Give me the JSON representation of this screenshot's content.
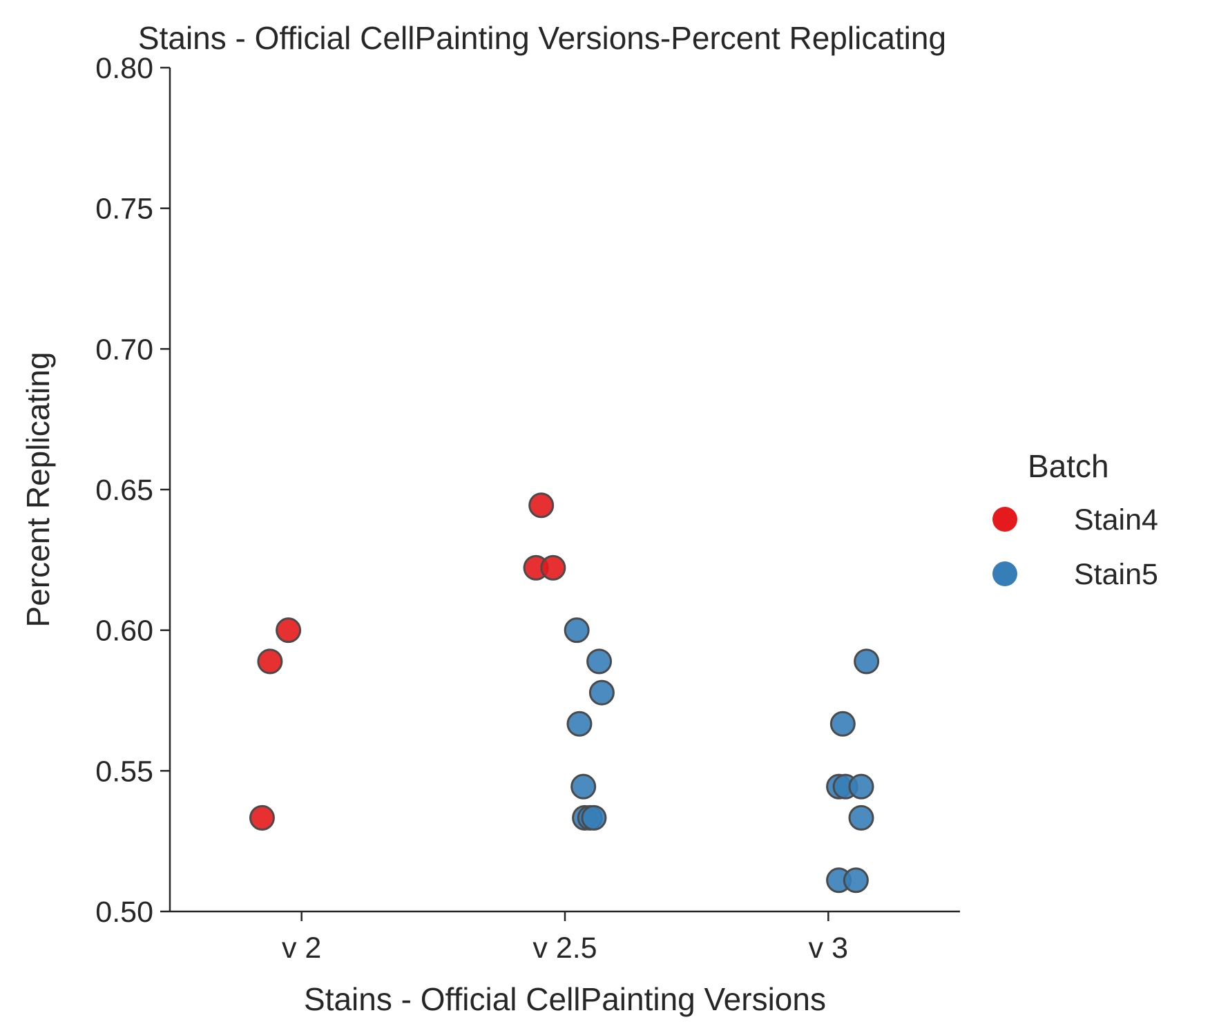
{
  "chart_data": {
    "type": "scatter",
    "title": "Stains - Official CellPainting Versions-Percent Replicating",
    "xlabel": "Stains - Official CellPainting Versions",
    "ylabel": "Percent Replicating",
    "categories": [
      "v 2",
      "v 2.5",
      "v 3"
    ],
    "ylim": [
      0.5,
      0.8
    ],
    "yticks": [
      "0.50",
      "0.55",
      "0.60",
      "0.65",
      "0.70",
      "0.75",
      "0.80"
    ],
    "grid": false,
    "legend": {
      "title": "Batch",
      "placement": "right"
    },
    "series": [
      {
        "name": "Stain4",
        "color": "#e41a1c",
        "points": [
          {
            "category": "v 2",
            "jitter": -0.15,
            "y": 0.5333
          },
          {
            "category": "v 2",
            "jitter": -0.12,
            "y": 0.5889
          },
          {
            "category": "v 2",
            "jitter": -0.05,
            "y": 0.6
          },
          {
            "category": "v 2.5",
            "jitter": -0.11,
            "y": 0.6222
          },
          {
            "category": "v 2.5",
            "jitter": -0.09,
            "y": 0.6444
          },
          {
            "category": "v 2.5",
            "jitter": -0.045,
            "y": 0.6222
          }
        ]
      },
      {
        "name": "Stain5",
        "color": "#377eb8",
        "points": [
          {
            "category": "v 2.5",
            "jitter": 0.045,
            "y": 0.6
          },
          {
            "category": "v 2.5",
            "jitter": 0.055,
            "y": 0.5667
          },
          {
            "category": "v 2.5",
            "jitter": 0.07,
            "y": 0.5444
          },
          {
            "category": "v 2.5",
            "jitter": 0.075,
            "y": 0.5333
          },
          {
            "category": "v 2.5",
            "jitter": 0.095,
            "y": 0.5333
          },
          {
            "category": "v 2.5",
            "jitter": 0.11,
            "y": 0.5333
          },
          {
            "category": "v 2.5",
            "jitter": 0.13,
            "y": 0.5889
          },
          {
            "category": "v 2.5",
            "jitter": 0.14,
            "y": 0.5778
          },
          {
            "category": "v 3",
            "jitter": 0.04,
            "y": 0.5111
          },
          {
            "category": "v 3",
            "jitter": 0.04,
            "y": 0.5444
          },
          {
            "category": "v 3",
            "jitter": 0.055,
            "y": 0.5667
          },
          {
            "category": "v 3",
            "jitter": 0.065,
            "y": 0.5444
          },
          {
            "category": "v 3",
            "jitter": 0.105,
            "y": 0.5111
          },
          {
            "category": "v 3",
            "jitter": 0.125,
            "y": 0.5333
          },
          {
            "category": "v 3",
            "jitter": 0.125,
            "y": 0.5444
          },
          {
            "category": "v 3",
            "jitter": 0.145,
            "y": 0.5889
          }
        ]
      }
    ]
  }
}
